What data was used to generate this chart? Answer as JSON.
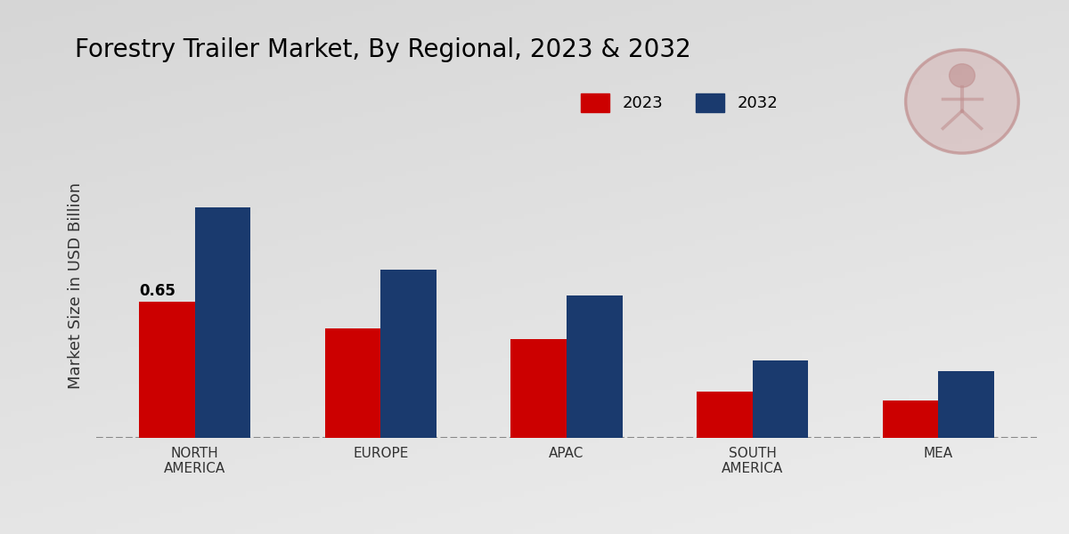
{
  "title": "Forestry Trailer Market, By Regional, 2023 & 2032",
  "ylabel": "Market Size in USD Billion",
  "categories": [
    "NORTH\nAMERICA",
    "EUROPE",
    "APAC",
    "SOUTH\nAMERICA",
    "MEA"
  ],
  "values_2023": [
    0.65,
    0.52,
    0.47,
    0.22,
    0.18
  ],
  "values_2032": [
    1.1,
    0.8,
    0.68,
    0.37,
    0.32
  ],
  "color_2023": "#cc0000",
  "color_2032": "#1a3a6e",
  "annotation_label": "0.65",
  "annotation_bar_index": 0,
  "legend_labels": [
    "2023",
    "2032"
  ],
  "bg_color_top": "#e8e8e8",
  "bg_color_bottom": "#c8c8c8",
  "bar_width": 0.3,
  "title_fontsize": 20,
  "axis_label_fontsize": 13,
  "tick_fontsize": 11,
  "legend_fontsize": 13,
  "ylim_max": 1.45
}
